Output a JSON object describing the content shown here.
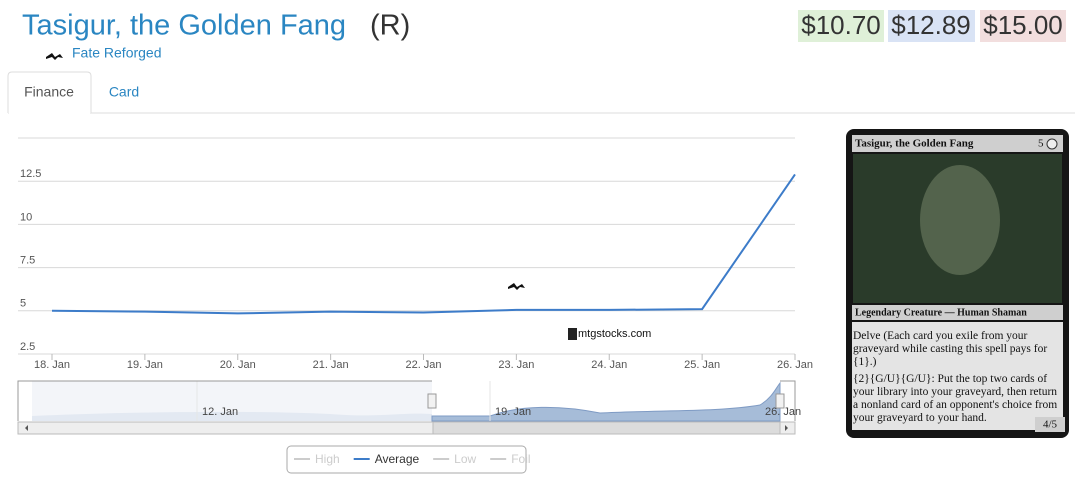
{
  "header": {
    "title": "Tasigur, the Golden Fang",
    "rarity": "(R)",
    "set": "Fate Reforged"
  },
  "prices": [
    "$10.70",
    "$12.89",
    "$15.00"
  ],
  "tabs": [
    "Finance",
    "Card"
  ],
  "chart_data": {
    "type": "line",
    "categories": [
      "18. Jan",
      "19. Jan",
      "20. Jan",
      "21. Jan",
      "22. Jan",
      "23. Jan",
      "24. Jan",
      "25. Jan",
      "26. Jan"
    ],
    "series": [
      {
        "name": "High",
        "color": "#cccccc",
        "visible": false,
        "values": [
          null,
          null,
          null,
          null,
          null,
          null,
          null,
          null,
          null
        ]
      },
      {
        "name": "Average",
        "color": "#3d7cc9",
        "visible": true,
        "values": [
          5.0,
          4.95,
          4.85,
          4.95,
          4.9,
          5.05,
          5.05,
          5.1,
          12.89
        ]
      },
      {
        "name": "Low",
        "color": "#cccccc",
        "visible": false,
        "values": [
          null,
          null,
          null,
          null,
          null,
          null,
          null,
          null,
          null
        ]
      },
      {
        "name": "Foil",
        "color": "#cccccc",
        "visible": false,
        "values": [
          null,
          null,
          null,
          null,
          null,
          null,
          null,
          null,
          null
        ]
      }
    ],
    "ylim": [
      2.5,
      15
    ],
    "yticks": [
      2.5,
      5,
      7.5,
      10,
      12.5
    ],
    "grid": true,
    "watermark": "mtgstocks.com",
    "navigator_labels": [
      "12. Jan",
      "19. Jan",
      "26. Jan"
    ]
  },
  "card": {
    "name": "Tasigur, the Golden Fang",
    "mana_cost": "5",
    "type_line": "Legendary Creature — Human Shaman",
    "rules": [
      "Delve (Each card you exile from your graveyard while casting this spell pays for {1}.)",
      "{2}{G/U}{G/U}: Put the top two cards of your library into your graveyard, then return a nonland card of an opponent's choice from your graveyard to your hand."
    ],
    "pt": "4/5"
  }
}
